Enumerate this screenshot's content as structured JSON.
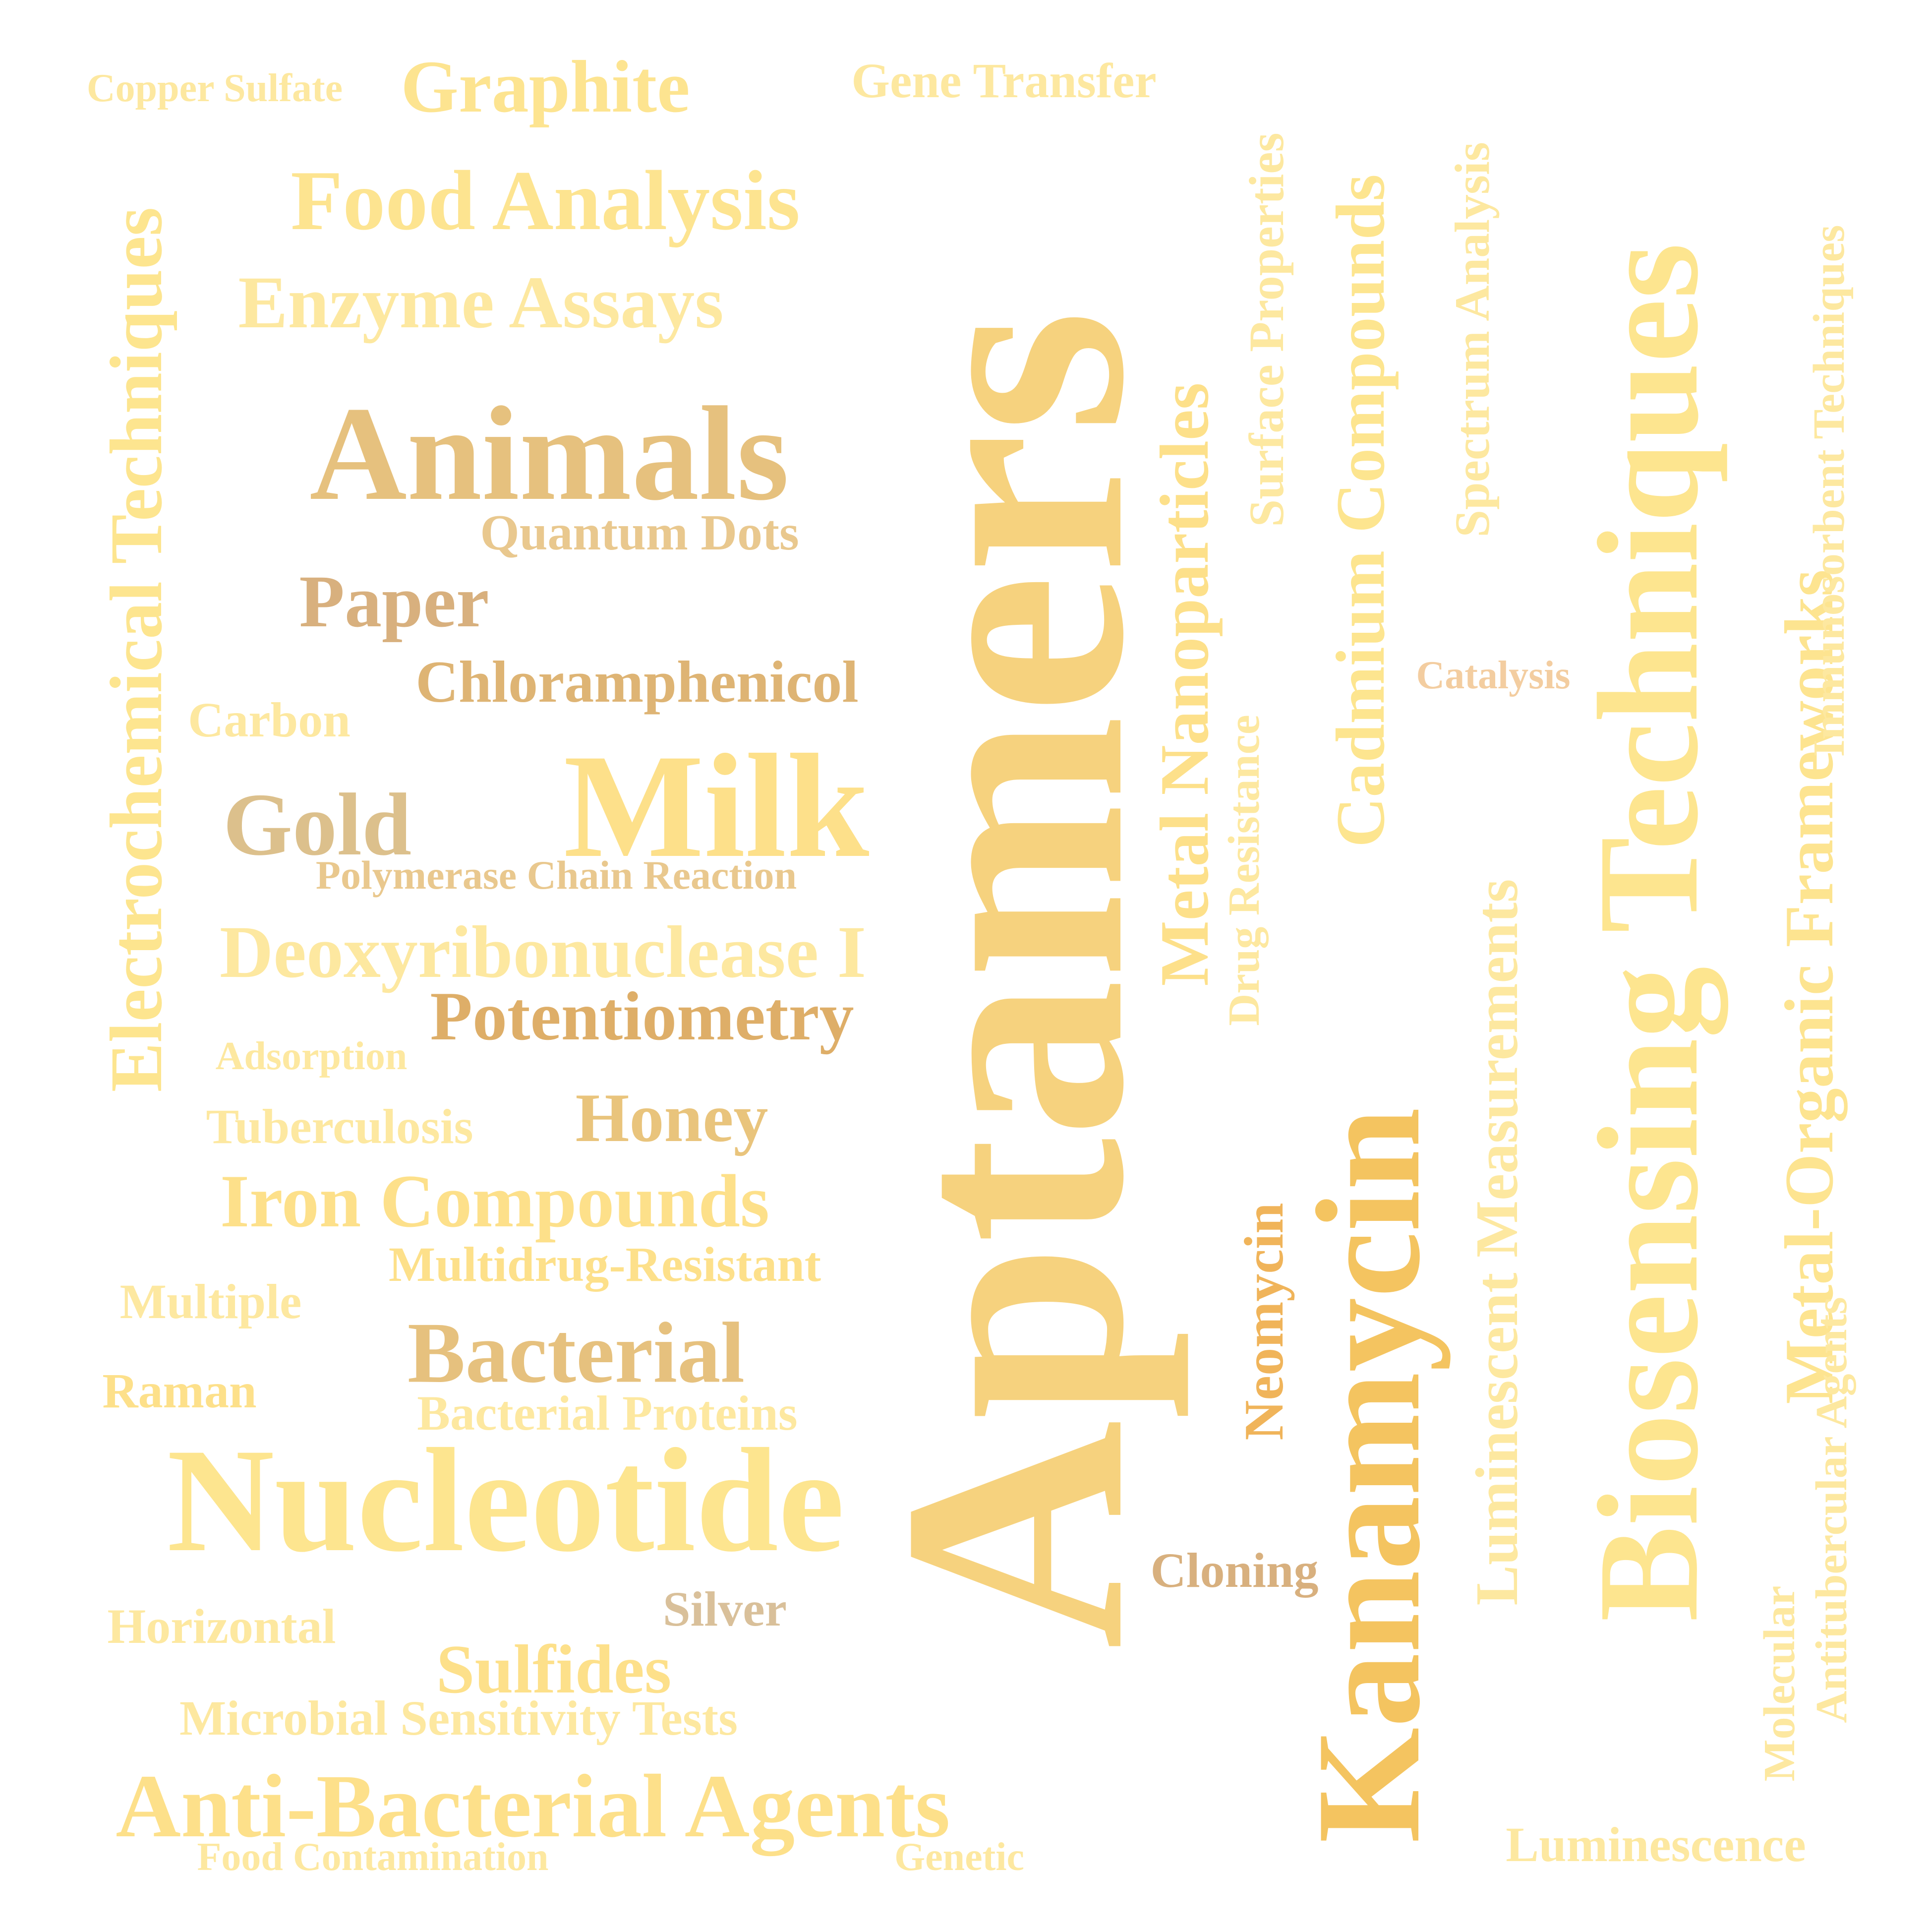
{
  "words": {
    "aptamers": "Aptamers",
    "biosensing_techniques": "Biosensing Techniques",
    "kanamycin": "Kanamycin",
    "nucleotide": "Nucleotide",
    "milk": "Milk",
    "animals": "Animals",
    "electrochemical_techniques": "Electrochemical Techniques",
    "metal_nanoparticles": "Metal Nanoparticles",
    "metal_organic_frameworks": "Metal-Organic Frameworks",
    "cadmium_compounds": "Cadmium Compounds",
    "luminescent_measurements": "Luminescent Measurements",
    "anti_bacterial_agents": "Anti-Bacterial Agents",
    "food_analysis": "Food Analysis",
    "graphite": "Graphite",
    "enzyme_assays": "Enzyme Assays",
    "deoxyribonuclease_i": "Deoxyribonuclease I",
    "bacterial": "Bacterial",
    "iron_compounds": "Iron Compounds",
    "potentiometry": "Potentiometry",
    "gold": "Gold",
    "paper": "Paper",
    "chloramphenicol": "Chloramphenicol",
    "honey": "Honey",
    "sulfides": "Sulfides",
    "neomycin": "Neomycin",
    "spectrum_analysis": "Spectrum Analysis",
    "surface_properties": "Surface Properties",
    "immunosorbent_techniques": "Immunosorbent Techniques",
    "gene_transfer": "Gene Transfer",
    "quantum_dots": "Quantum Dots",
    "multidrug_resistant": "Multidrug-Resistant",
    "bacterial_proteins": "Bacterial Proteins",
    "microbial_sensitivity_tests": "Microbial Sensitivity Tests",
    "tuberculosis": "Tuberculosis",
    "carbon": "Carbon",
    "multiple": "Multiple",
    "raman": "Raman",
    "horizontal": "Horizontal",
    "cloning": "Cloning",
    "silver": "Silver",
    "luminescence": "Luminescence",
    "drug_resistance": "Drug Resistance",
    "antitubercular_agents": "Antitubercular Agents",
    "molecular": "Molecular",
    "polymerase_chain_reaction": "Polymerase Chain Reaction",
    "copper_sulfate": "Copper Sulfate",
    "adsorption": "Adsorption",
    "catalysis": "Catalysis",
    "food_contamination": "Food Contamination",
    "genetic": "Genetic"
  },
  "colors": {
    "light_yellow": "#fde58f",
    "pale_yellow": "#fde8a0",
    "gold": "#f6d27e",
    "tan": "#e6c17e",
    "beige": "#dcc08c",
    "orange": "#f0b45a",
    "brown_tan": "#d8b07e"
  }
}
